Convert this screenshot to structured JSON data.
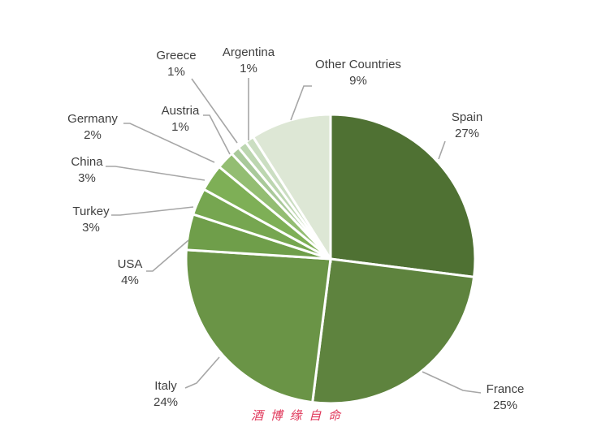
{
  "chart_data": {
    "type": "pie",
    "title": "",
    "series": [
      {
        "values": [
          27,
          25,
          24,
          4,
          3,
          3,
          2,
          1,
          1,
          1,
          9
        ]
      }
    ],
    "categories": [
      "Spain",
      "France",
      "Italy",
      "USA",
      "Turkey",
      "China",
      "Germany",
      "Austria",
      "Greece",
      "Argentina",
      "Other Countries"
    ],
    "slices": [
      {
        "label": "Spain",
        "value": 27,
        "value_label": "27%",
        "color": "#4f7133"
      },
      {
        "label": "France",
        "value": 25,
        "value_label": "25%",
        "color": "#5e833e"
      },
      {
        "label": "Italy",
        "value": 24,
        "value_label": "24%",
        "color": "#6a9446"
      },
      {
        "label": "USA",
        "value": 4,
        "value_label": "4%",
        "color": "#6f9e4a"
      },
      {
        "label": "Turkey",
        "value": 3,
        "value_label": "3%",
        "color": "#76a650"
      },
      {
        "label": "China",
        "value": 3,
        "value_label": "3%",
        "color": "#7eaf56"
      },
      {
        "label": "Germany",
        "value": 2,
        "value_label": "2%",
        "color": "#93bd72"
      },
      {
        "label": "Austria",
        "value": 1,
        "value_label": "1%",
        "color": "#a9c99a"
      },
      {
        "label": "Greece",
        "value": 1,
        "value_label": "1%",
        "color": "#bcd6b0"
      },
      {
        "label": "Argentina",
        "value": 1,
        "value_label": "1%",
        "color": "#cbdec2"
      },
      {
        "label": "Other Countries",
        "value": 9,
        "value_label": "9%",
        "color": "#dde7d5"
      }
    ],
    "legend": "none"
  },
  "watermark": {
    "text": "酒 博 缘 自 命"
  }
}
